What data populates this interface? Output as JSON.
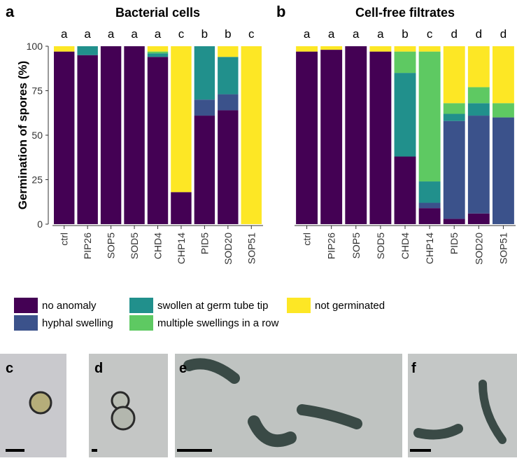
{
  "chart_data": [
    {
      "type": "stacked-bar",
      "panel": "a",
      "title": "Bacterial cells",
      "y_label": "Germination of spores (%)",
      "categories": [
        "ctrl",
        "PIP26",
        "SOP5",
        "SOD5",
        "CHD4",
        "CHP14",
        "PID5",
        "SOD20",
        "SOP51"
      ],
      "letters": [
        "a",
        "a",
        "a",
        "a",
        "a",
        "c",
        "b",
        "b",
        "c"
      ],
      "ylim": [
        0,
        100
      ],
      "yticks": [
        0,
        25,
        50,
        75,
        100
      ],
      "series": [
        {
          "name": "no anomaly",
          "color": "#440154",
          "values": [
            97,
            95,
            100,
            100,
            94,
            18,
            61,
            64,
            0
          ]
        },
        {
          "name": "hyphal swelling",
          "color": "#3b528b",
          "values": [
            0,
            0,
            0,
            0,
            0,
            0,
            9,
            9,
            0
          ]
        },
        {
          "name": "swollen at germ tube tip",
          "color": "#21908c",
          "values": [
            0,
            5,
            0,
            0,
            2,
            0,
            30,
            21,
            0
          ]
        },
        {
          "name": "multiple swellings in a row",
          "color": "#5ec962",
          "values": [
            0,
            0,
            0,
            0,
            1,
            0,
            0,
            0,
            0
          ]
        },
        {
          "name": "not germinated",
          "color": "#fde725",
          "values": [
            3,
            0,
            0,
            0,
            3,
            82,
            0,
            6,
            100
          ]
        }
      ]
    },
    {
      "type": "stacked-bar",
      "panel": "b",
      "title": "Cell-free filtrates",
      "categories": [
        "ctrl",
        "PIP26",
        "SOP5",
        "SOD5",
        "CHD4",
        "CHP14",
        "PID5",
        "SOD20",
        "SOP51"
      ],
      "letters": [
        "a",
        "a",
        "a",
        "a",
        "b",
        "c",
        "d",
        "d",
        "d"
      ],
      "ylim": [
        0,
        100
      ],
      "series": [
        {
          "values": [
            97,
            98,
            100,
            97,
            38,
            9,
            3,
            6,
            0
          ]
        },
        {
          "values": [
            0,
            0,
            0,
            0,
            0,
            3,
            55,
            55,
            60
          ]
        },
        {
          "values": [
            0,
            0,
            0,
            0,
            47,
            12,
            4,
            7,
            0
          ]
        },
        {
          "values": [
            0,
            0,
            0,
            0,
            12,
            73,
            6,
            9,
            8
          ]
        },
        {
          "values": [
            3,
            2,
            0,
            3,
            3,
            3,
            32,
            23,
            32
          ]
        }
      ]
    }
  ],
  "micrographs": [
    {
      "label": "c"
    },
    {
      "label": "d"
    },
    {
      "label": "e"
    },
    {
      "label": "f"
    }
  ]
}
